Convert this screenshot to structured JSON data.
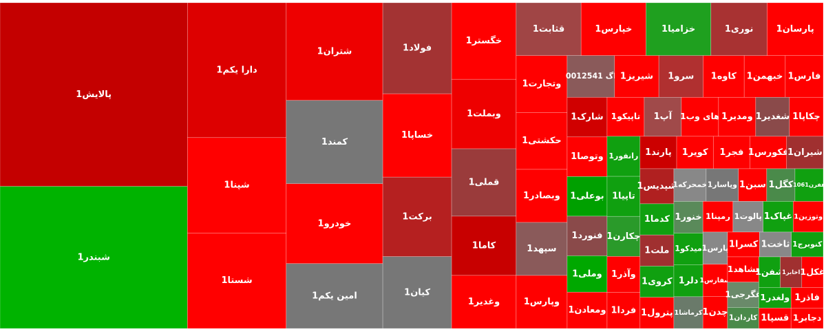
{
  "chart_data": {
    "type": "treemap",
    "tiles": [
      {
        "label": "پالایش1",
        "value": 522,
        "color": "#c40000"
      },
      {
        "label": "شبندر1",
        "value": 404,
        "color": "#00b300"
      },
      {
        "label": "دارا یکم1",
        "value": 202,
        "color": "#dd0000"
      },
      {
        "label": "شپنا1",
        "value": 143,
        "color": "#ff0000"
      },
      {
        "label": "شستا1",
        "value": 143,
        "color": "#ff0000"
      },
      {
        "label": "شتران1",
        "value": 143,
        "color": "#ee0000"
      },
      {
        "label": "کمند1",
        "value": 122,
        "color": "#777777"
      },
      {
        "label": "خودرو1",
        "value": 117,
        "color": "#ff0000"
      },
      {
        "label": "امین یکم1",
        "value": 95,
        "color": "#777777"
      },
      {
        "label": "فولاد1",
        "value": 95,
        "color": "#a33333"
      },
      {
        "label": "خساپا1",
        "value": 87,
        "color": "#ff0000"
      },
      {
        "label": "برکت1",
        "value": 83,
        "color": "#b52020"
      },
      {
        "label": "کیان1",
        "value": 75,
        "color": "#777777"
      },
      {
        "label": "خگستر1",
        "value": 75,
        "color": "#ff0000"
      },
      {
        "label": "وبملت1",
        "value": 68,
        "color": "#ee0000"
      },
      {
        "label": "قملی1",
        "value": 66,
        "color": "#9a3b3b"
      },
      {
        "label": "کاما1",
        "value": 58,
        "color": "#c80000"
      },
      {
        "label": "وغدیر1",
        "value": 52,
        "color": "#ff0000"
      },
      {
        "label": "قثابت1",
        "value": 52,
        "color": "#a04545"
      },
      {
        "label": "خپارس1",
        "value": 52,
        "color": "#ff0000"
      },
      {
        "label": "خزامیا1",
        "value": 52,
        "color": "#1fa01f"
      },
      {
        "label": "نوری1",
        "value": 45,
        "color": "#a83232"
      },
      {
        "label": "پارسان1",
        "value": 45,
        "color": "#ff0000"
      },
      {
        "label": "وتجارت1",
        "value": 44,
        "color": "#ff0000"
      },
      {
        "label": "حکشتی1",
        "value": 44,
        "color": "#ff0000"
      },
      {
        "label": "وبصادر1",
        "value": 41,
        "color": "#ff0000"
      },
      {
        "label": "سپهد1",
        "value": 41,
        "color": "#8a5a5a"
      },
      {
        "label": "وپارس1",
        "value": 41,
        "color": "#ff0000"
      },
      {
        "label": "اگ 0012541",
        "value": 30,
        "color": "#8a5a5a"
      },
      {
        "label": "شیریز1",
        "value": 28,
        "color": "#ff0000"
      },
      {
        "label": "سرو1",
        "value": 28,
        "color": "#b03030"
      },
      {
        "label": "کاوه1",
        "value": 26,
        "color": "#ff0000"
      },
      {
        "label": "خبهمن1",
        "value": 26,
        "color": "#ff0000"
      },
      {
        "label": "فارس1",
        "value": 24,
        "color": "#ff0000"
      },
      {
        "label": "شارک1",
        "value": 24,
        "color": "#d00000"
      },
      {
        "label": "وتوصا1",
        "value": 24,
        "color": "#ff0000"
      },
      {
        "label": "بوعلی1",
        "value": 24,
        "color": "#00a000"
      },
      {
        "label": "فنورد1",
        "value": 24,
        "color": "#8a4a4a"
      },
      {
        "label": "وملی1",
        "value": 22,
        "color": "#00a800"
      },
      {
        "label": "ومعادن1",
        "value": 22,
        "color": "#ff0000"
      },
      {
        "label": "تاپیکو1",
        "value": 22,
        "color": "#ff0000"
      },
      {
        "label": "آپ1",
        "value": 22,
        "color": "#a04a4a"
      },
      {
        "label": "های وب1",
        "value": 22,
        "color": "#ff0000"
      },
      {
        "label": "ومدیر1",
        "value": 22,
        "color": "#ff0000"
      },
      {
        "label": "شغدیر1",
        "value": 20,
        "color": "#8a4a4a"
      },
      {
        "label": "چکاپا1",
        "value": 20,
        "color": "#ff0000"
      },
      {
        "label": "رانفور1",
        "value": 20,
        "color": "#10a010"
      },
      {
        "label": "تاپیا1",
        "value": 20,
        "color": "#10a010"
      },
      {
        "label": "چکارن1",
        "value": 20,
        "color": "#2a9a2a"
      },
      {
        "label": "وآذر1",
        "value": 18,
        "color": "#ff0000"
      },
      {
        "label": "فردا1",
        "value": 18,
        "color": "#ff0000"
      },
      {
        "label": "پارند1",
        "value": 18,
        "color": "#cc0000"
      },
      {
        "label": "کویر1",
        "value": 18,
        "color": "#ff0000"
      },
      {
        "label": "فجر1",
        "value": 18,
        "color": "#ff0000"
      },
      {
        "label": "فکورس1",
        "value": 18,
        "color": "#ff0000"
      },
      {
        "label": "شیران1",
        "value": 18,
        "color": "#a03030"
      },
      {
        "label": "شپدیس1",
        "value": 18,
        "color": "#b02020"
      },
      {
        "label": "کدما1",
        "value": 16,
        "color": "#10a010"
      },
      {
        "label": "ملت1",
        "value": 16,
        "color": "#a03030"
      },
      {
        "label": "کروی1",
        "value": 16,
        "color": "#10a010"
      },
      {
        "label": "پترول1",
        "value": 16,
        "color": "#ff0000"
      },
      {
        "label": "خمحرکه1",
        "value": 16,
        "color": "#888888"
      },
      {
        "label": "وپاسار1",
        "value": 16,
        "color": "#777777"
      },
      {
        "label": "سبن1",
        "value": 14,
        "color": "#ff0000"
      },
      {
        "label": "کگل1",
        "value": 14,
        "color": "#4a8a4a"
      },
      {
        "label": "هفرن1061",
        "value": 14,
        "color": "#10a010"
      },
      {
        "label": "خنور1",
        "value": 14,
        "color": "#5a8a5a"
      },
      {
        "label": "میدکو1",
        "value": 14,
        "color": "#10a010"
      },
      {
        "label": "دلر1",
        "value": 14,
        "color": "#10a010"
      },
      {
        "label": "کرماشا1",
        "value": 14,
        "color": "#6a7a6a"
      },
      {
        "label": "رمپنا1",
        "value": 14,
        "color": "#ff0000"
      },
      {
        "label": "پالوت1",
        "value": 14,
        "color": "#888888"
      },
      {
        "label": "غپاک1",
        "value": 14,
        "color": "#10a010"
      },
      {
        "label": "وتوزین1",
        "value": 14,
        "color": "#ff0000"
      },
      {
        "label": "پارس1",
        "value": 12,
        "color": "#888888"
      },
      {
        "label": "سفارس1",
        "value": 12,
        "color": "#ff0000"
      },
      {
        "label": "چدن1",
        "value": 12,
        "color": "#ff0000"
      },
      {
        "label": "کسرا1",
        "value": 12,
        "color": "#ff0000"
      },
      {
        "label": "ثاخت1",
        "value": 12,
        "color": "#888888"
      },
      {
        "label": "کنوبرج1",
        "value": 12,
        "color": "#10a010"
      },
      {
        "label": "تشاهد1",
        "value": 12,
        "color": "#ff0000"
      },
      {
        "label": "غگرجی1",
        "value": 12,
        "color": "#6a8a6a"
      },
      {
        "label": "کاردان1",
        "value": 10,
        "color": "#4a8a4a"
      },
      {
        "label": "شفن1",
        "value": 10,
        "color": "#10a010"
      },
      {
        "label": "اخابر1",
        "value": 10,
        "color": "#a03030"
      },
      {
        "label": "غکل1",
        "value": 10,
        "color": "#ff0000"
      },
      {
        "label": "ولغدر1",
        "value": 10,
        "color": "#10a010"
      },
      {
        "label": "قسپا1",
        "value": 10,
        "color": "#ff0000"
      },
      {
        "label": "فاذر1",
        "value": 10,
        "color": "#ff0000"
      },
      {
        "label": "دجابر1",
        "value": 10,
        "color": "#ff0000"
      }
    ]
  }
}
